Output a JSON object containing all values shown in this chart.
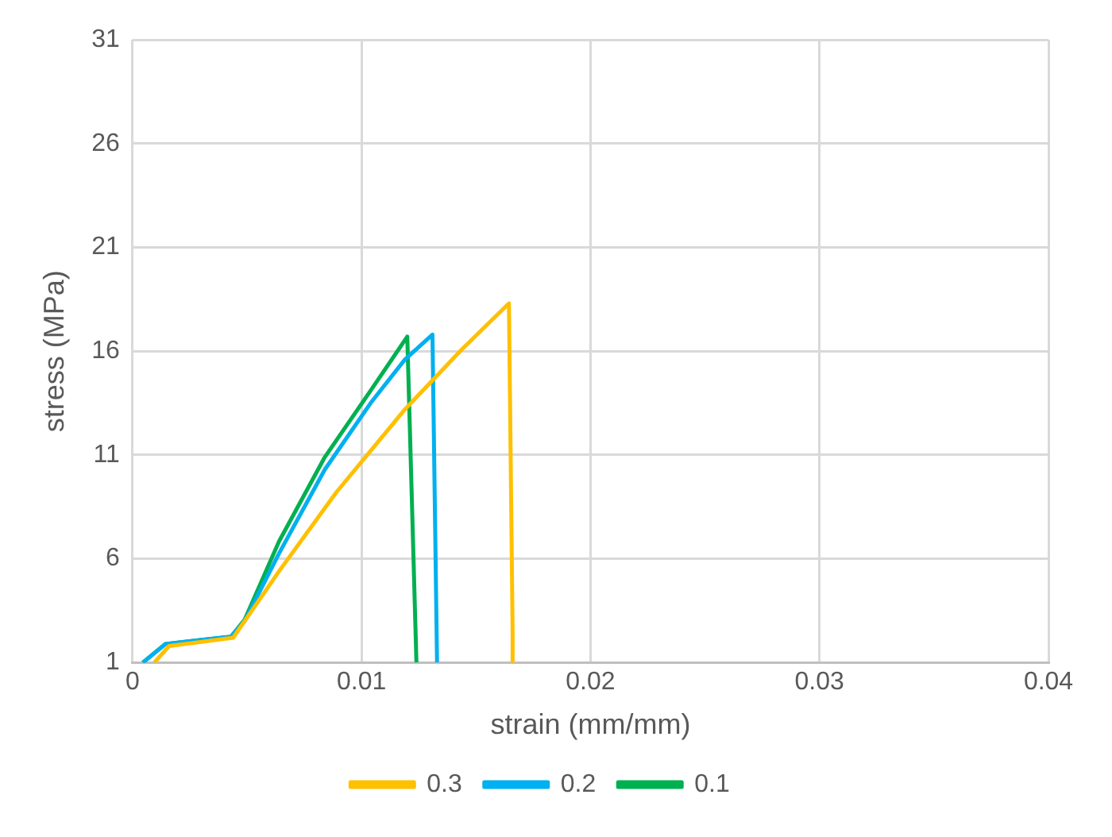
{
  "chart_data": {
    "type": "line",
    "xlabel": "strain (mm/mm)",
    "ylabel": "stress (MPa)",
    "xlim": [
      0,
      0.04
    ],
    "xticks": [
      0,
      0.01,
      0.02,
      0.03,
      0.04
    ],
    "ylim": [
      1,
      31
    ],
    "yticks": [
      1,
      6,
      11,
      16,
      21,
      26,
      31
    ],
    "grid": true,
    "legend": "bottom",
    "marker": "none",
    "line_style": "solid",
    "series": [
      {
        "name": "0.3",
        "color": "#ffc000",
        "x": [
          0.00095,
          0.0016,
          0.0044,
          0.0064,
          0.0089,
          0.0119,
          0.0144,
          0.01644,
          0.0166,
          0.0166
        ],
        "values": [
          1,
          1.8,
          2.2,
          5.4,
          9.2,
          13.2,
          16.1,
          18.3,
          2.5,
          1
        ]
      },
      {
        "name": "0.2",
        "color": "#00b0f0",
        "x": [
          0.00045,
          0.00144,
          0.0043,
          0.0049,
          0.0064,
          0.0084,
          0.0104,
          0.0119,
          0.0131,
          0.0133
        ],
        "values": [
          1,
          1.9,
          2.25,
          3.0,
          6.26,
          10.3,
          13.5,
          15.6,
          16.8,
          1
        ]
      },
      {
        "name": "0.1",
        "color": "#00b050",
        "x": [
          0.00045,
          0.00144,
          0.0043,
          0.0049,
          0.0064,
          0.0084,
          0.0104,
          0.012,
          0.0124
        ],
        "values": [
          1,
          1.9,
          2.25,
          3.07,
          6.84,
          10.9,
          14.1,
          16.7,
          1
        ]
      }
    ]
  }
}
